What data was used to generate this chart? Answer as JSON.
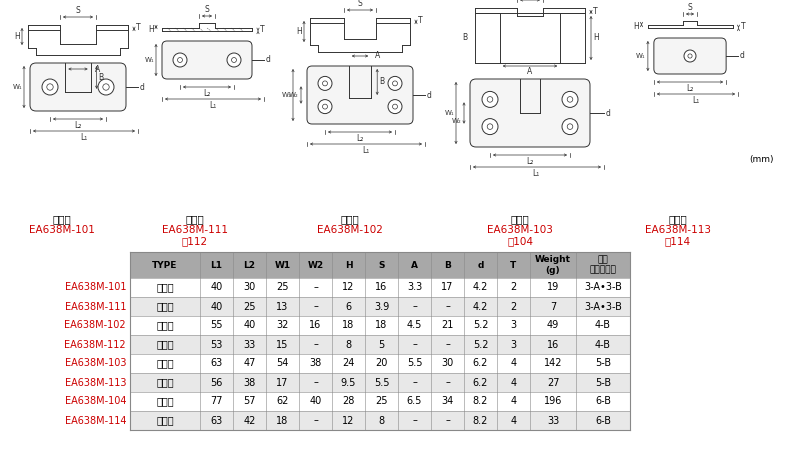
{
  "bg_color": "#ffffff",
  "rows": [
    {
      "code": "EA638M-101",
      "type": "着脱用",
      "L1": "40",
      "L2": "30",
      "W1": "25",
      "W2": "–",
      "H": "12",
      "S": "16",
      "A": "3.3",
      "B": "17",
      "d": "4.2",
      "T": "2",
      "Weight": "19",
      "chain": "3-A•3-B"
    },
    {
      "code": "EA638M-111",
      "type": "固定用",
      "L1": "40",
      "L2": "25",
      "W1": "13",
      "W2": "–",
      "H": "6",
      "S": "3.9",
      "A": "–",
      "B": "–",
      "d": "4.2",
      "T": "2",
      "Weight": "7",
      "chain": "3-A•3-B"
    },
    {
      "code": "EA638M-102",
      "type": "着脱用",
      "L1": "55",
      "L2": "40",
      "W1": "32",
      "W2": "16",
      "H": "18",
      "S": "18",
      "A": "4.5",
      "B": "21",
      "d": "5.2",
      "T": "3",
      "Weight": "49",
      "chain": "4-B"
    },
    {
      "code": "EA638M-112",
      "type": "固定用",
      "L1": "53",
      "L2": "33",
      "W1": "15",
      "W2": "–",
      "H": "8",
      "S": "5",
      "A": "–",
      "B": "–",
      "d": "5.2",
      "T": "3",
      "Weight": "16",
      "chain": "4-B"
    },
    {
      "code": "EA638M-103",
      "type": "着脱用",
      "L1": "63",
      "L2": "47",
      "W1": "54",
      "W2": "38",
      "H": "24",
      "S": "20",
      "A": "5.5",
      "B": "30",
      "d": "6.2",
      "T": "4",
      "Weight": "142",
      "chain": "5-B"
    },
    {
      "code": "EA638M-113",
      "type": "固定用",
      "L1": "56",
      "L2": "38",
      "W1": "17",
      "W2": "–",
      "H": "9.5",
      "S": "5.5",
      "A": "–",
      "B": "–",
      "d": "6.2",
      "T": "4",
      "Weight": "27",
      "chain": "5-B"
    },
    {
      "code": "EA638M-104",
      "type": "着脱用",
      "L1": "77",
      "L2": "57",
      "W1": "62",
      "W2": "40",
      "H": "28",
      "S": "25",
      "A": "6.5",
      "B": "34",
      "d": "8.2",
      "T": "4",
      "Weight": "196",
      "chain": "6-B"
    },
    {
      "code": "EA638M-114",
      "type": "固定用",
      "L1": "63",
      "L2": "42",
      "W1": "18",
      "W2": "–",
      "H": "12",
      "S": "8",
      "A": "–",
      "B": "–",
      "d": "8.2",
      "T": "4",
      "Weight": "33",
      "chain": "6-B"
    }
  ],
  "code_color": "#cc0000",
  "header_bg": "#a0a0a0",
  "row_colors": [
    "#ffffff",
    "#e0e0e0"
  ],
  "grid_color": "#999999"
}
